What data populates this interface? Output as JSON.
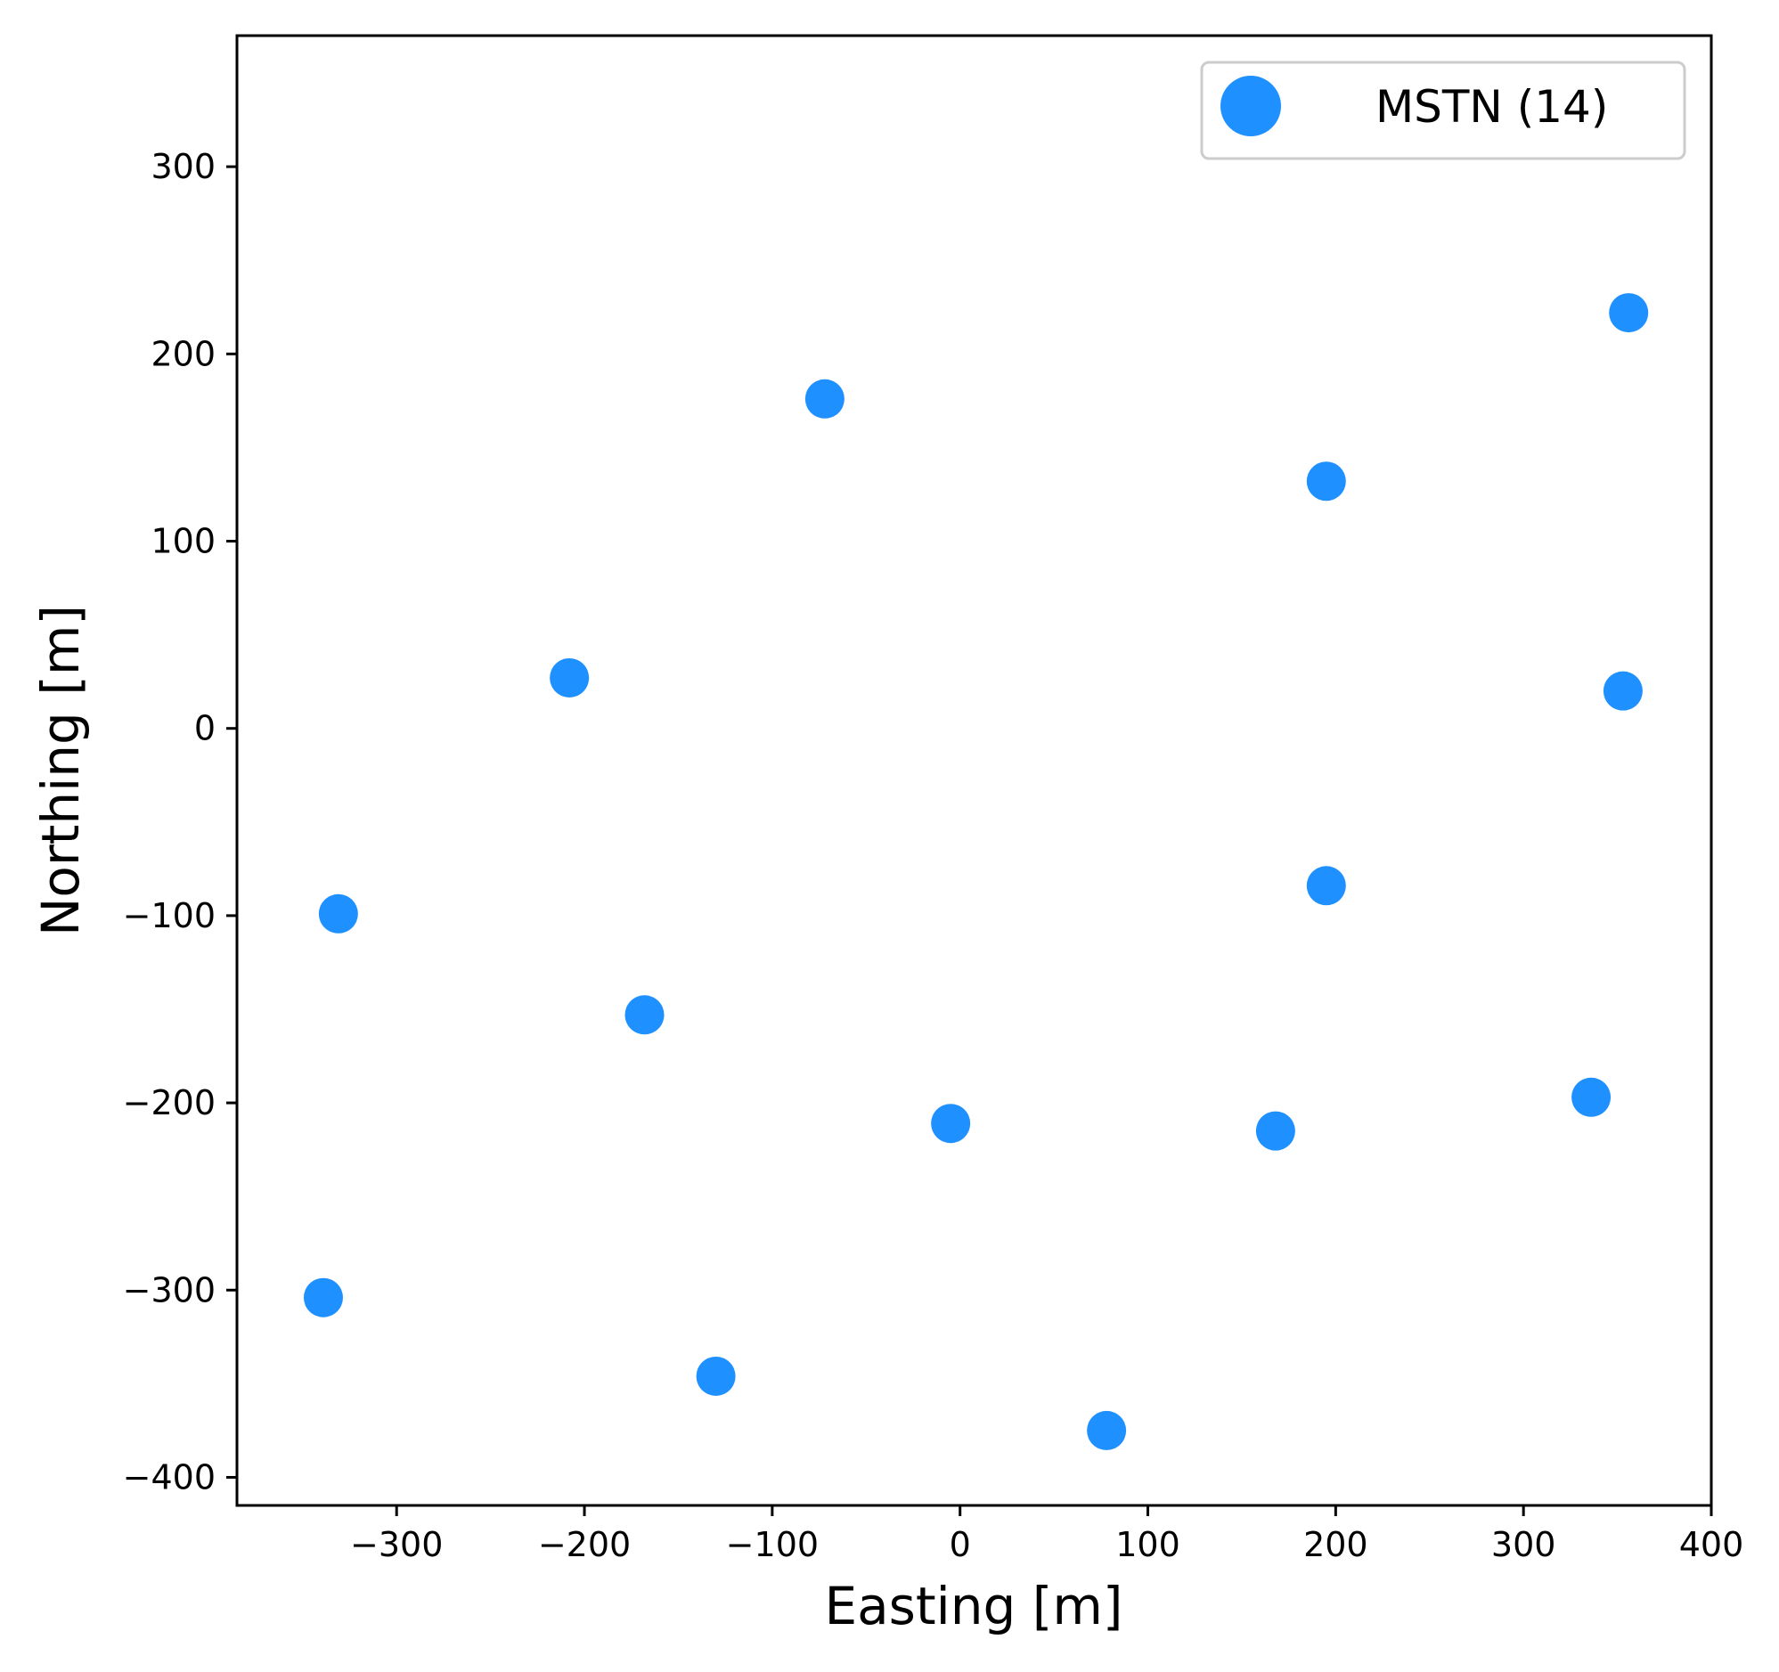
{
  "chart_data": {
    "type": "scatter",
    "title": "",
    "xlabel": "Easting [m]",
    "ylabel": "Northing [m]",
    "xlim": [
      -385,
      400
    ],
    "ylim": [
      -415,
      370
    ],
    "xticks": [
      -300,
      -200,
      -100,
      0,
      100,
      200,
      300,
      400
    ],
    "yticks": [
      -400,
      -300,
      -200,
      -100,
      0,
      100,
      200,
      300
    ],
    "xtick_labels": [
      "−300",
      "−200",
      "−100",
      "0",
      "100",
      "200",
      "300",
      "400"
    ],
    "ytick_labels": [
      "−400",
      "−300",
      "−200",
      "−100",
      "0",
      "100",
      "200",
      "300"
    ],
    "grid": false,
    "legend_position": "top-right",
    "series": [
      {
        "name": "MSTN (14)",
        "color": "#1e90ff",
        "marker": "circle",
        "points": [
          {
            "x": -72,
            "y": 176
          },
          {
            "x": 195,
            "y": 132
          },
          {
            "x": 356,
            "y": 222
          },
          {
            "x": -208,
            "y": 27
          },
          {
            "x": 353,
            "y": 20
          },
          {
            "x": -331,
            "y": -99
          },
          {
            "x": 195,
            "y": -84
          },
          {
            "x": -168,
            "y": -153
          },
          {
            "x": -5,
            "y": -211
          },
          {
            "x": 168,
            "y": -215
          },
          {
            "x": 336,
            "y": -197
          },
          {
            "x": -339,
            "y": -304
          },
          {
            "x": -130,
            "y": -346
          },
          {
            "x": 78,
            "y": -375
          }
        ]
      }
    ]
  }
}
